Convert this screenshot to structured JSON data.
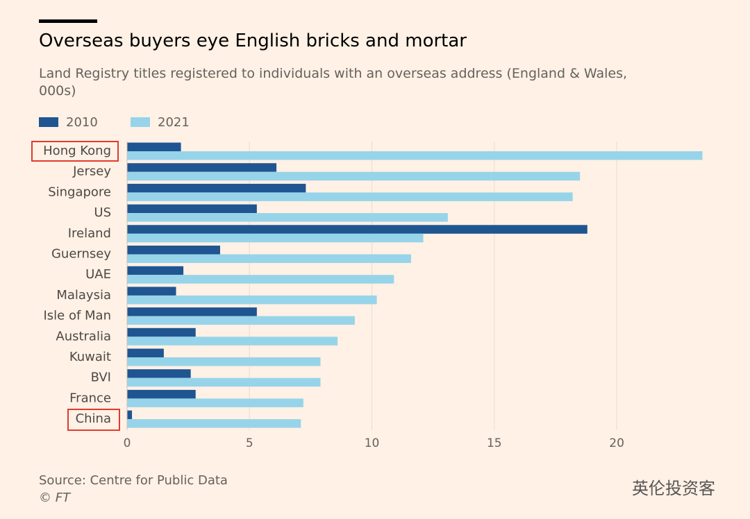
{
  "chart_data": {
    "type": "bar",
    "orientation": "horizontal",
    "title": "Overseas buyers eye English bricks and mortar",
    "subtitle": "Land Registry titles registered to individuals with an overseas address (England & Wales, 000s)",
    "categories": [
      "Hong Kong",
      "Jersey",
      "Singapore",
      "US",
      "Ireland",
      "Guernsey",
      "UAE",
      "Malaysia",
      "Isle of Man",
      "Australia",
      "Kuwait",
      "BVI",
      "France",
      "China"
    ],
    "series": [
      {
        "name": "2010",
        "color": "#1f5591",
        "values": [
          2.2,
          6.1,
          7.3,
          5.3,
          18.8,
          3.8,
          2.3,
          2.0,
          5.3,
          2.8,
          1.5,
          2.6,
          2.8,
          0.2
        ]
      },
      {
        "name": "2021",
        "color": "#97d4ea",
        "values": [
          23.5,
          18.5,
          18.2,
          13.1,
          12.1,
          11.6,
          10.9,
          10.2,
          9.3,
          8.6,
          7.9,
          7.9,
          7.2,
          7.1
        ]
      }
    ],
    "xlim": [
      0,
      23.6
    ],
    "xticks": [
      0,
      5,
      10,
      15,
      20
    ],
    "grid": true,
    "legend": "top-left",
    "source": "Source: Centre for Public Data",
    "credit": "© FT",
    "watermark": "英伦投资客"
  }
}
